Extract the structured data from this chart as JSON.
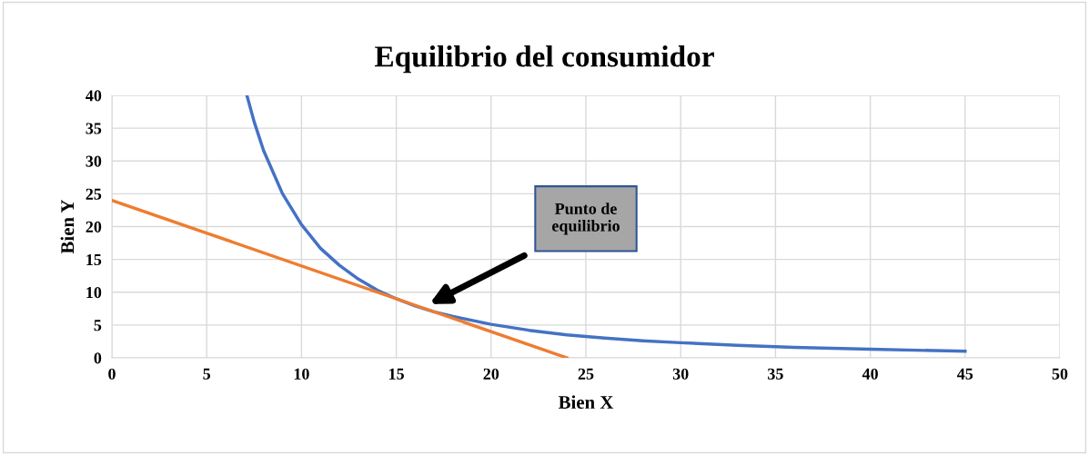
{
  "chart_data": {
    "type": "line",
    "title": "Equilibrio del consumidor",
    "xlabel": "Bien X",
    "ylabel": "Bien Y",
    "series": [
      {
        "color": "#4472c4",
        "x": [
          7.12,
          7.5,
          8,
          9,
          10,
          11,
          12,
          13,
          14,
          15,
          16,
          17,
          18,
          20,
          22,
          24,
          26,
          28,
          30,
          33,
          36,
          40,
          45
        ],
        "values": [
          40,
          36,
          31.6,
          25,
          20.3,
          16.7,
          14.1,
          12,
          10.3,
          9,
          7.9,
          7,
          6.3,
          5.1,
          4.2,
          3.5,
          3,
          2.6,
          2.3,
          1.9,
          1.6,
          1.3,
          1
        ]
      },
      {
        "color": "#ed7d31",
        "x": [
          0,
          24
        ],
        "values": [
          24,
          0
        ]
      }
    ],
    "annotations": [
      "Punto de\nequilibrio"
    ],
    "xlim": [
      0,
      50
    ],
    "xticks": [
      0,
      5,
      10,
      15,
      20,
      25,
      30,
      35,
      40,
      45,
      50
    ],
    "ylim": [
      0,
      40
    ],
    "yticks": [
      0,
      5,
      10,
      15,
      20,
      25,
      30,
      35,
      40
    ],
    "grid": true,
    "legend": false,
    "marker": "none",
    "line_style": "solid"
  }
}
